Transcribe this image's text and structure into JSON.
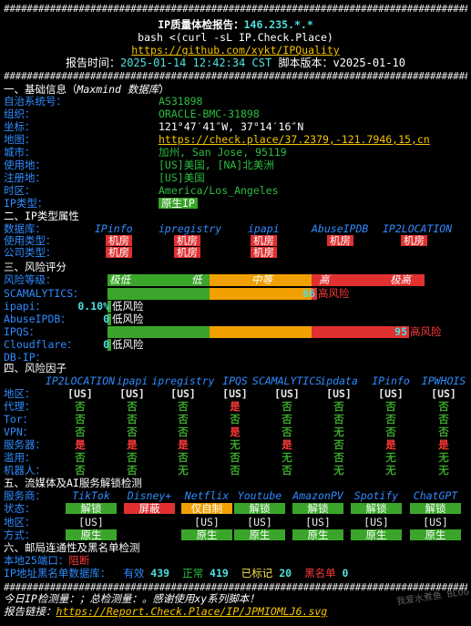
{
  "report": {
    "title_prefix": "IP质量体检报告：",
    "ip": "146.235.*.*",
    "command": "bash <(curl -sL IP.Check.Place)",
    "repo_url": "https://github.com/xykt/IPQuality",
    "time_label": "报告时间：",
    "time": "2025-01-14 12:42:34 CST",
    "version_label": "脚本版本：",
    "version": "v2025-01-10",
    "separator": "########################################################################################"
  },
  "basic": {
    "heading": "一、基础信息（",
    "heading_src": "Maxmind 数据库",
    "heading_end": "）",
    "rows": [
      {
        "label": "自治系统号：",
        "value": "AS31898"
      },
      {
        "label": "组织：",
        "value": "ORACLE-BMC-31898"
      },
      {
        "label": "坐标：",
        "value": "121°47′41″W, 37°14′16″N"
      },
      {
        "label": "地图：",
        "value": "https://check.place/37.2379,-121.7946,15,cn"
      },
      {
        "label": "城市：",
        "value": "加州, San Jose, 95119"
      },
      {
        "label": "使用地：",
        "value": "[US]美国, [NA]北美洲"
      },
      {
        "label": "注册地：",
        "value": "[US]美国"
      },
      {
        "label": "时区：",
        "value": "America/Los_Angeles"
      },
      {
        "label": "IP类型：",
        "value": "原生IP"
      }
    ]
  },
  "iptype": {
    "heading": "二、IP类型属性",
    "db_label": "数据库：",
    "dbs": [
      "IPinfo",
      "ipregistry",
      "ipapi",
      "AbuseIPDB",
      "IP2LOCATION"
    ],
    "use_label": "使用类型：",
    "use_values": [
      "机房",
      "机房",
      "机房",
      "机房",
      "机房"
    ],
    "company_label": "公司类型：",
    "company_values": [
      "机房",
      "机房",
      "机房"
    ]
  },
  "risk": {
    "heading": "三、风险评分",
    "level_label": "风险等级：",
    "levels": [
      "极低",
      "低",
      "中等",
      "高",
      "极高"
    ],
    "scores": [
      {
        "label": "SCAMALYTICS：",
        "score": "66",
        "text": "高风险",
        "value": 66
      },
      {
        "label": "ipapi：",
        "score": "0.10%",
        "text": "低风险",
        "value": 0.1
      },
      {
        "label": "AbuseIPDB：",
        "score": "0",
        "text": "低风险",
        "value": 0
      },
      {
        "label": "IPQS：",
        "score": "95",
        "text": "高风险",
        "value": 95
      },
      {
        "label": "Cloudflare：",
        "score": "0",
        "text": "低风险",
        "value": 0
      },
      {
        "label": "DB-IP：",
        "score": "",
        "text": "",
        "value": null
      }
    ]
  },
  "factors": {
    "heading": "四、风险因子",
    "cols": [
      "IP2LOCATION",
      "ipapi",
      "ipregistry",
      "IPQS",
      "SCAMALYTICS",
      "ipdata",
      "IPinfo",
      "IPWHOIS"
    ],
    "rows": [
      {
        "label": "地区：",
        "values": [
          "[US]",
          "[US]",
          "[US]",
          "[US]",
          "[US]",
          "[US]",
          "[US]",
          "[US]"
        ]
      },
      {
        "label": "代理：",
        "values": [
          "否",
          "否",
          "否",
          "是",
          "否",
          "否",
          "否",
          "否"
        ]
      },
      {
        "label": "Tor：",
        "values": [
          "否",
          "否",
          "否",
          "否",
          "否",
          "否",
          "否",
          "否"
        ]
      },
      {
        "label": "VPN：",
        "values": [
          "否",
          "否",
          "否",
          "是",
          "否",
          "无",
          "否",
          "否"
        ]
      },
      {
        "label": "服务器：",
        "values": [
          "是",
          "是",
          "是",
          "无",
          "是",
          "否",
          "是",
          "是"
        ]
      },
      {
        "label": "滥用：",
        "values": [
          "否",
          "否",
          "否",
          "否",
          "无",
          "否",
          "无",
          "无"
        ]
      },
      {
        "label": "机器人：",
        "values": [
          "否",
          "否",
          "无",
          "否",
          "否",
          "无",
          "无",
          "无"
        ]
      }
    ]
  },
  "streaming": {
    "heading": "五、流媒体及AI服务解锁检测",
    "service_label": "服务商：",
    "services": [
      "TikTok",
      "Disney+",
      "Netflix",
      "Youtube",
      "AmazonPV",
      "Spotify",
      "ChatGPT"
    ],
    "status_label": "状态：",
    "status": [
      "解锁",
      "屏蔽",
      "仅自制",
      "解锁",
      "解锁",
      "解锁",
      "解锁"
    ],
    "region_label": "地区：",
    "regions": [
      "[US]",
      "",
      "[US]",
      "[US]",
      "[US]",
      "[US]",
      "[US]"
    ],
    "method_label": "方式：",
    "methods": [
      "原生",
      "",
      "原生",
      "原生",
      "原生",
      "原生",
      "原生"
    ]
  },
  "mail": {
    "heading": "六、邮局连通性及黑名单检测",
    "port_label": "本地25端口：",
    "port_value": "阻断",
    "bl_label": "IP地址黑名单数据库：",
    "valid_label": "有效",
    "valid": "439",
    "normal_label": "正常",
    "normal": "419",
    "marked_label": "已标记",
    "marked": "20",
    "black_label": "黑名单",
    "black": "0"
  },
  "footer": {
    "line1": "今日IP检测量：；总检测量：。感谢使用xy系列脚本！",
    "link_label": "报告链接：",
    "link": "https://Report.Check.Place/IP/JPMIOMLJ6.svg",
    "watermark": "我爱水煮鱼 BLOG"
  },
  "colors": {
    "green": "#3aa52a",
    "red": "#e03030",
    "orange": "#f0a000",
    "label_blue": "#2f8cff"
  }
}
